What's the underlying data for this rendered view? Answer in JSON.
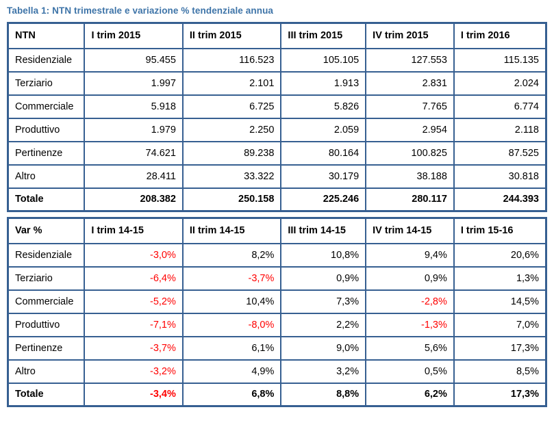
{
  "page": {
    "caption": "Tabella 1: NTN trimestrale e variazione % tendenziale annua"
  },
  "colors": {
    "caption": "#3E74A8",
    "table_border": "#365F91",
    "negative_value": "#FF0000",
    "text": "#000000"
  },
  "ntn_table": {
    "headers": [
      "NTN",
      "I trim 2015",
      "II trim 2015",
      "III trim 2015",
      "IV trim 2015",
      "I trim 2016"
    ],
    "rows": [
      {
        "label": "Residenziale",
        "values": [
          "95.455",
          "116.523",
          "105.105",
          "127.553",
          "115.135"
        ],
        "bold": false
      },
      {
        "label": "Terziario",
        "values": [
          "1.997",
          "2.101",
          "1.913",
          "2.831",
          "2.024"
        ],
        "bold": false
      },
      {
        "label": "Commerciale",
        "values": [
          "5.918",
          "6.725",
          "5.826",
          "7.765",
          "6.774"
        ],
        "bold": false
      },
      {
        "label": "Produttivo",
        "values": [
          "1.979",
          "2.250",
          "2.059",
          "2.954",
          "2.118"
        ],
        "bold": false
      },
      {
        "label": "Pertinenze",
        "values": [
          "74.621",
          "89.238",
          "80.164",
          "100.825",
          "87.525"
        ],
        "bold": false
      },
      {
        "label": "Altro",
        "values": [
          "28.411",
          "33.322",
          "30.179",
          "38.188",
          "30.818"
        ],
        "bold": false
      },
      {
        "label": "Totale",
        "values": [
          "208.382",
          "250.158",
          "225.246",
          "280.117",
          "244.393"
        ],
        "bold": true
      }
    ]
  },
  "var_table": {
    "headers": [
      "Var %",
      "I trim 14-15",
      "II trim 14-15",
      "III trim 14-15",
      "IV trim 14-15",
      "I trim 15-16"
    ],
    "rows": [
      {
        "label": "Residenziale",
        "values": [
          "-3,0%",
          "8,2%",
          "10,8%",
          "9,4%",
          "20,6%"
        ],
        "bold": false
      },
      {
        "label": "Terziario",
        "values": [
          "-6,4%",
          "-3,7%",
          "0,9%",
          "0,9%",
          "1,3%"
        ],
        "bold": false
      },
      {
        "label": "Commerciale",
        "values": [
          "-5,2%",
          "10,4%",
          "7,3%",
          "-2,8%",
          "14,5%"
        ],
        "bold": false
      },
      {
        "label": "Produttivo",
        "values": [
          "-7,1%",
          "-8,0%",
          "2,2%",
          "-1,3%",
          "7,0%"
        ],
        "bold": false
      },
      {
        "label": "Pertinenze",
        "values": [
          "-3,7%",
          "6,1%",
          "9,0%",
          "5,6%",
          "17,3%"
        ],
        "bold": false
      },
      {
        "label": "Altro",
        "values": [
          "-3,2%",
          "4,9%",
          "3,2%",
          "0,5%",
          "8,5%"
        ],
        "bold": false
      },
      {
        "label": "Totale",
        "values": [
          "-3,4%",
          "6,8%",
          "8,8%",
          "6,2%",
          "17,3%"
        ],
        "bold": true
      }
    ]
  }
}
